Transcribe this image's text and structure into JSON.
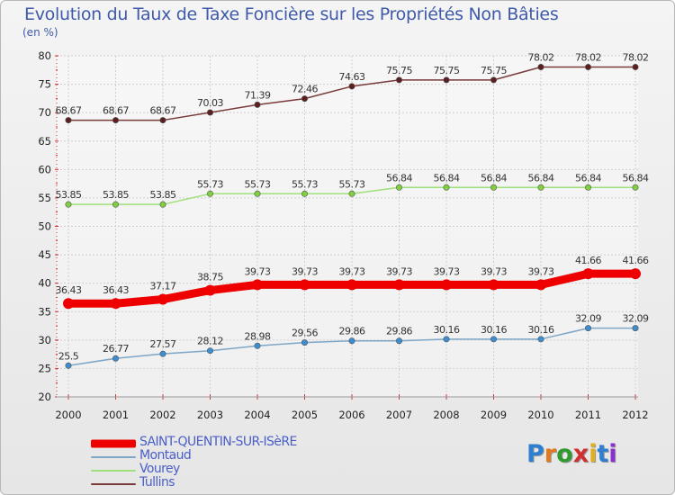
{
  "title": "Evolution du Taux de Taxe Foncière sur les Propriétés Non Bâties",
  "unit": "(en %)",
  "logo": {
    "letters": [
      "P",
      "r",
      "o",
      "x",
      "i",
      "t",
      "i"
    ],
    "colors": [
      "#2f7fd0",
      "#e07a1c",
      "#2f9a2f",
      "#d02f2f",
      "#e0b01c",
      "#2f7fd0",
      "#8a2fd0"
    ]
  },
  "chart_data": {
    "type": "line",
    "title": "Evolution du Taux de Taxe Foncière sur les Propriétés Non Bâties",
    "ylabel": "(en %)",
    "xlabel": "",
    "ylim": [
      20,
      80
    ],
    "yticks": [
      20,
      25,
      30,
      35,
      40,
      45,
      50,
      55,
      60,
      65,
      70,
      75,
      80
    ],
    "categories": [
      "2000",
      "2001",
      "2002",
      "2003",
      "2004",
      "2005",
      "2006",
      "2007",
      "2008",
      "2009",
      "2010",
      "2011",
      "2012"
    ],
    "grid": true,
    "legend_position": "bottom-left",
    "series": [
      {
        "name": "SAINT-QUENTIN-SUR-ISèRE",
        "color": "#ee0000",
        "marker": "#ee0000",
        "emphasis": true,
        "values": [
          36.43,
          36.43,
          37.17,
          38.75,
          39.73,
          39.73,
          39.73,
          39.73,
          39.73,
          39.73,
          39.73,
          41.66,
          41.66
        ],
        "labels": [
          "36.43",
          "36.43",
          "37.17",
          "38.75",
          "39.73",
          "39.73",
          "39.73",
          "39.73",
          "39.73",
          "39.73",
          "39.73",
          "41.66",
          "41.66"
        ]
      },
      {
        "name": "Montaud",
        "color": "#7ea6c6",
        "marker": "#3d8ed1",
        "emphasis": false,
        "values": [
          25.5,
          26.77,
          27.57,
          28.12,
          28.98,
          29.56,
          29.86,
          29.86,
          30.16,
          30.16,
          30.16,
          32.09,
          32.09
        ],
        "labels": [
          "25.5",
          "26.77",
          "27.57",
          "28.12",
          "28.98",
          "29.56",
          "29.86",
          "29.86",
          "30.16",
          "30.16",
          "30.16",
          "32.09",
          "32.09"
        ]
      },
      {
        "name": "Vourey",
        "color": "#9fe07a",
        "marker": "#7fcf3f",
        "emphasis": false,
        "values": [
          53.85,
          53.85,
          53.85,
          55.73,
          55.73,
          55.73,
          55.73,
          56.84,
          56.84,
          56.84,
          56.84,
          56.84,
          56.84
        ],
        "labels": [
          "53.85",
          "53.85",
          "53.85",
          "55.73",
          "55.73",
          "55.73",
          "55.73",
          "56.84",
          "56.84",
          "56.84",
          "56.84",
          "56.84",
          "56.84"
        ]
      },
      {
        "name": "Tullins",
        "color": "#7a3b3b",
        "marker": "#5c1f1f",
        "emphasis": false,
        "values": [
          68.67,
          68.67,
          68.67,
          70.03,
          71.39,
          72.46,
          74.63,
          75.75,
          75.75,
          75.75,
          78.02,
          78.02,
          78.02
        ],
        "labels": [
          "68.67",
          "68.67",
          "68.67",
          "70.03",
          "71.39",
          "72.46",
          "74.63",
          "75.75",
          "75.75",
          "75.75",
          "78.02",
          "78.02",
          "78.02"
        ]
      }
    ]
  }
}
